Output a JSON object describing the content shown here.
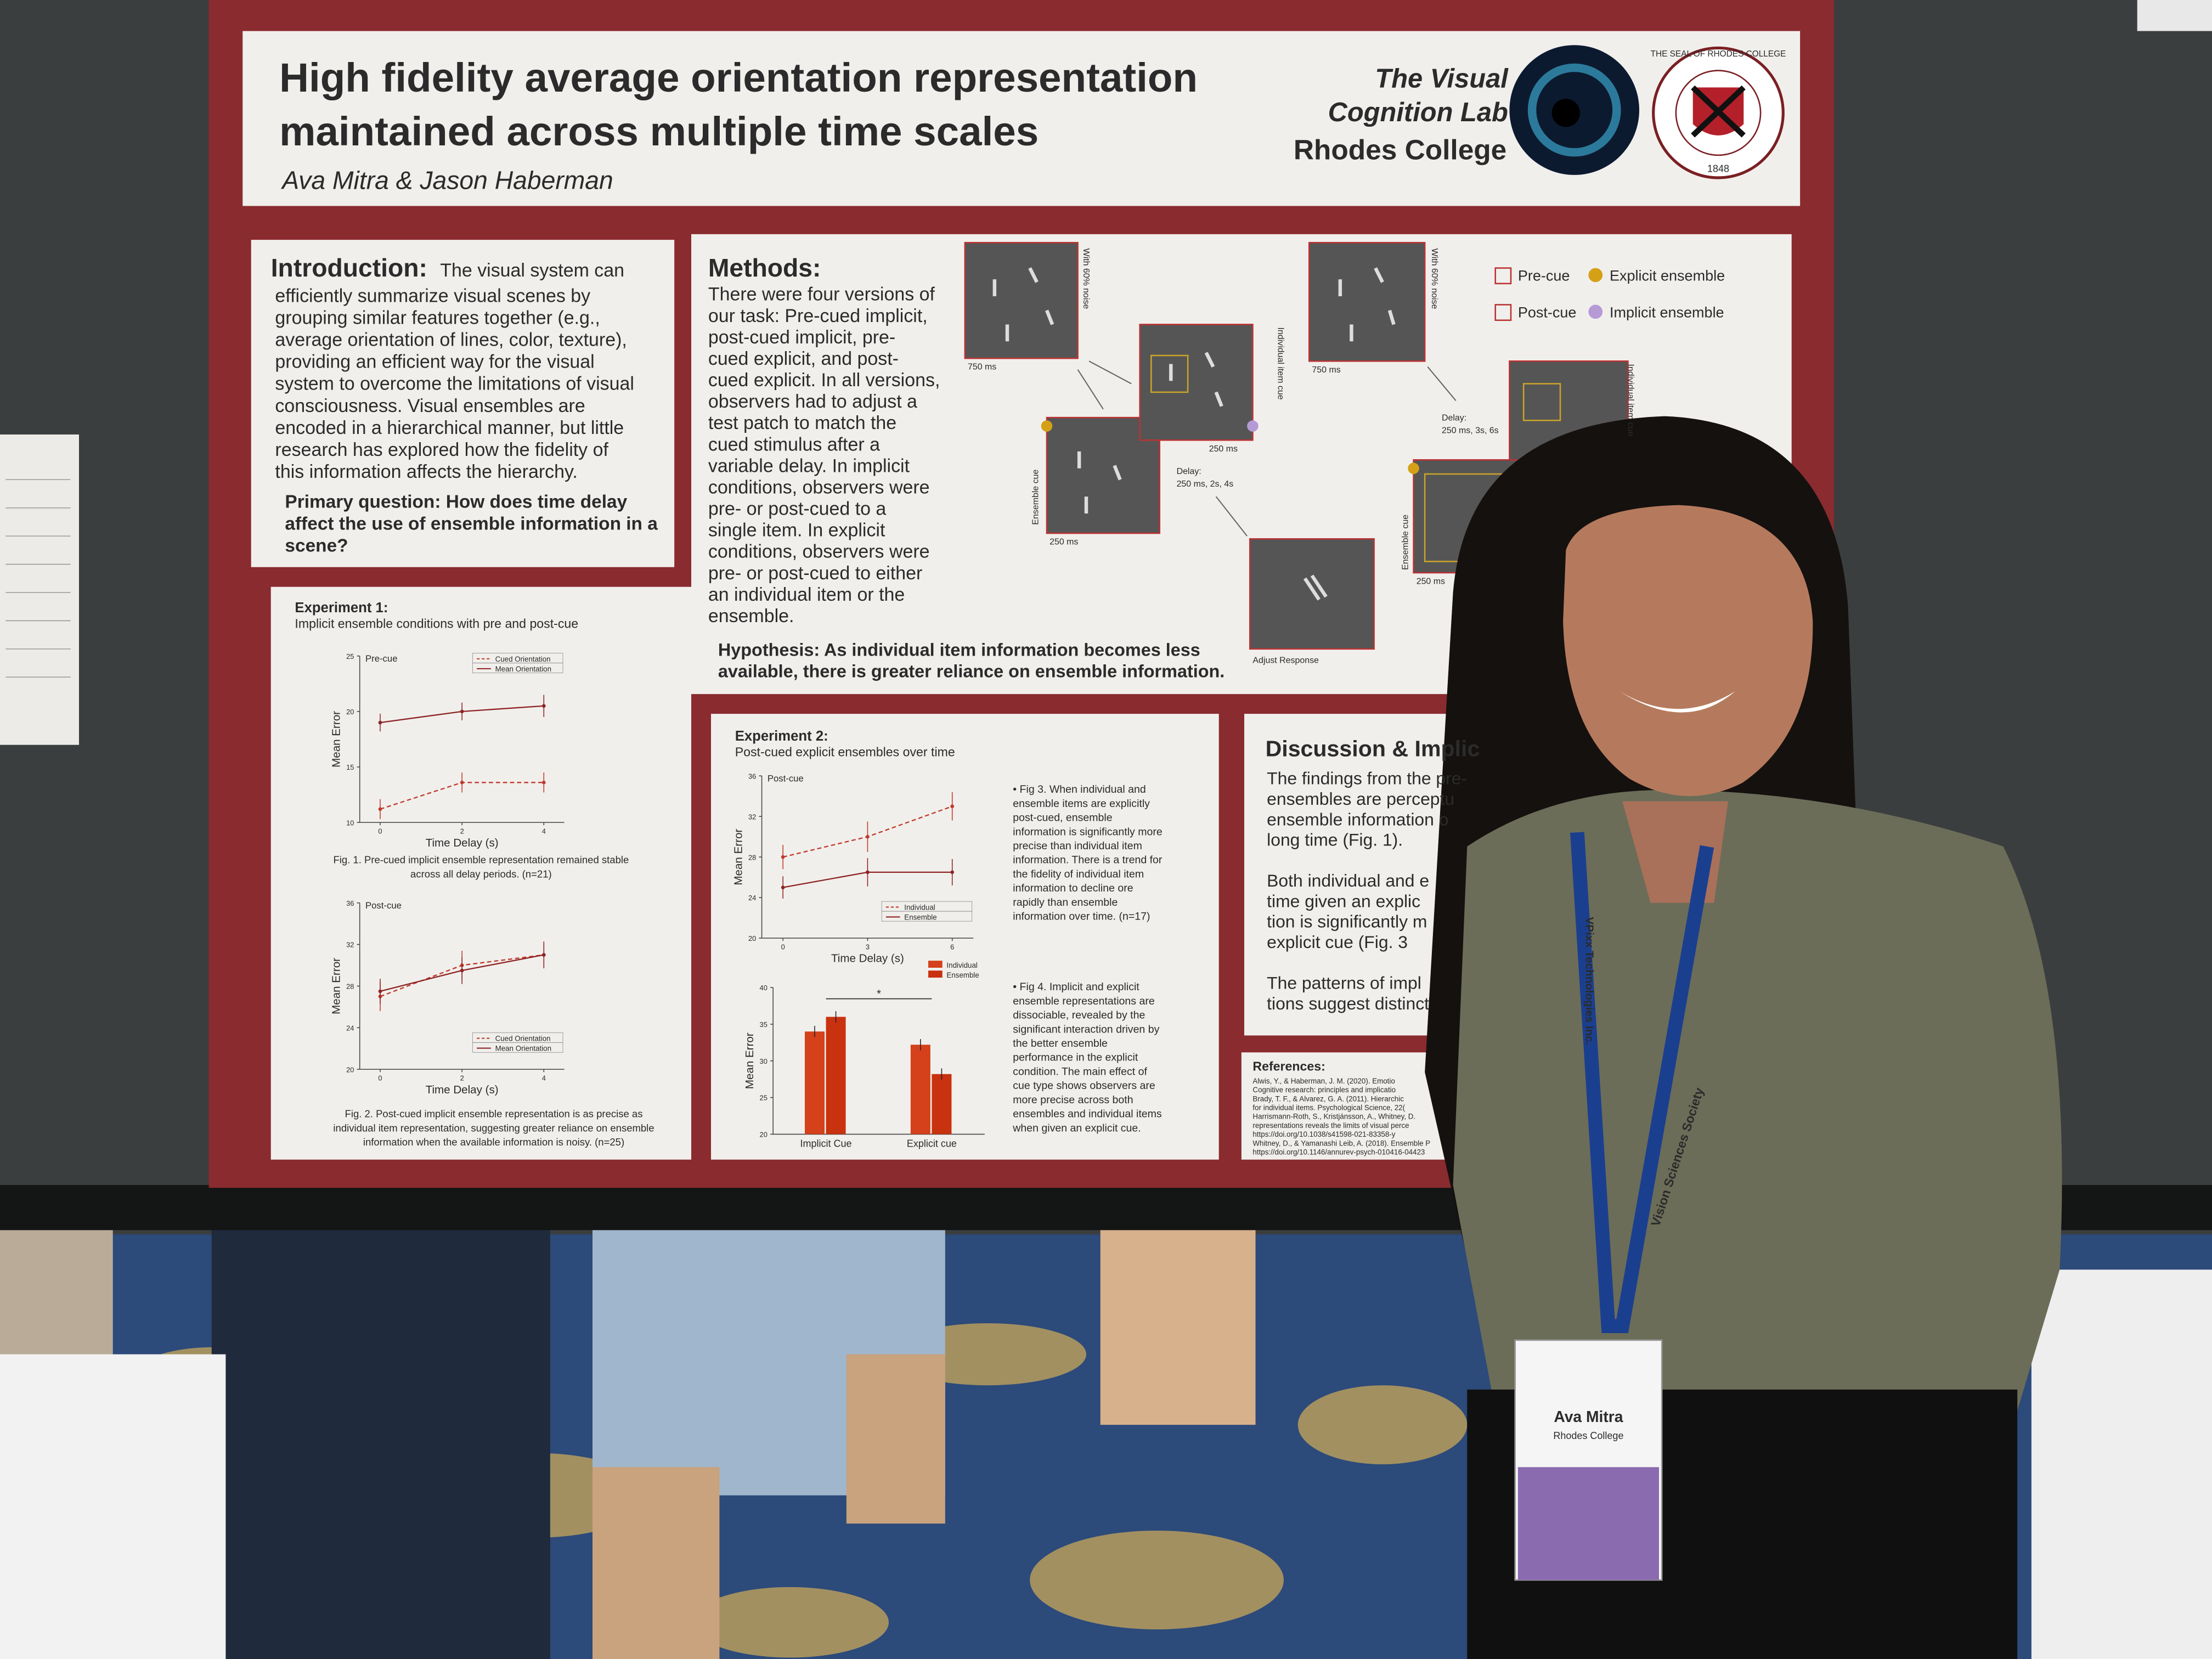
{
  "poster": {
    "title": [
      "High fidelity average orientation representation",
      "maintained across multiple time scales"
    ],
    "authors": "Ava Mitra & Jason Haberman",
    "lab": [
      "The Visual",
      "Cognition Lab"
    ],
    "college": "Rhodes College",
    "seal": [
      "THE SEAL OF RHODES COLLEGE",
      "1848"
    ],
    "introduction": {
      "heading": "Introduction:",
      "first": "The visual system can",
      "lines": [
        "efficiently summarize visual scenes by",
        "grouping similar features together (e.g.,",
        "average orientation of lines, color, texture),",
        "providing an efficient way for the visual",
        "system to overcome the limitations of visual",
        "consciousness. Visual ensembles are",
        "encoded in a hierarchical manner, but little",
        "research has explored how the fidelity of",
        "this information affects the hierarchy."
      ],
      "question": [
        "Primary question: How does time delay",
        "affect the use of ensemble information in a",
        "scene?"
      ]
    },
    "methods": {
      "heading": "Methods:",
      "lines": [
        "There were four versions of",
        "our task: Pre-cued implicit,",
        "post-cued implicit, pre-",
        "cued explicit, and post-",
        "cued explicit. In all versions,",
        "observers had to adjust a",
        "test patch to match the",
        "cued stimulus after a",
        "variable delay. In implicit",
        "conditions, observers were",
        "pre- or post-cued to a",
        "single item. In explicit",
        "conditions, observers were",
        "pre- or post-cued to either",
        "an individual item or the",
        "ensemble."
      ],
      "hypothesis": [
        "Hypothesis: As individual item information becomes less",
        "available, there is greater reliance on ensemble information."
      ],
      "legend": [
        "Pre-cue",
        "Explicit ensemble",
        "Post-cue",
        "Implicit ensemble"
      ],
      "labels": [
        "With 60% noise",
        "750 ms",
        "Individual item cue",
        "250 ms",
        "Ensemble cue",
        "250 ms",
        "Delay:",
        "250 ms, 2s, 4s",
        "Adjust Response",
        "With 60% noise",
        "750 ms",
        "Delay:",
        "250 ms, 3s, 6s",
        "Individual item cue",
        "Ensemble cue",
        "250 ms"
      ]
    },
    "experiment1": {
      "heading": "Experiment 1:",
      "subtitle": "Implicit ensemble conditions with pre and post-cue",
      "fig1_caption": [
        "Fig. 1. Pre-cued implicit ensemble representation remained stable",
        "across all delay periods. (n=21)"
      ],
      "fig2_caption": [
        "Fig. 2. Post-cued implicit ensemble representation is as precise as",
        "individual item representation, suggesting greater reliance on ensemble",
        "information when the available information is noisy. (n=25)"
      ]
    },
    "experiment2": {
      "heading": "Experiment 2:",
      "subtitle": "Post-cued explicit ensembles over time",
      "fig3_text": [
        "• Fig 3. When individual and",
        "ensemble items are explicitly",
        "post-cued, ensemble",
        "information is significantly more",
        "precise than individual item",
        "information. There is a trend for",
        "the fidelity of individual item",
        "information to decline ore",
        "rapidly than ensemble",
        "information over time.  (n=17)"
      ],
      "fig4_text": [
        "• Fig 4. Implicit and explicit",
        "ensemble representations are",
        "dissociable, revealed by the",
        "significant interaction driven by",
        "the better ensemble",
        "performance in the explicit",
        "condition. The main effect of",
        "cue type shows observers are",
        "more precise across both",
        "ensembles and individual items",
        "when given an explicit cue."
      ]
    },
    "discussion": {
      "heading": "Discussion & Implic",
      "lines": [
        "The findings from the pre-",
        "ensembles are perceptu",
        "ensemble information o",
        "long time (Fig. 1).",
        "",
        "Both individual and e",
        "time given an explic",
        "tion is significantly m",
        "explicit cue (Fig. 3",
        "",
        "The patterns of impl",
        "tions suggest distinct"
      ]
    },
    "references": {
      "heading": "References:",
      "lines": [
        "Alwis, Y., & Haberman, J. M. (2020). Emotio",
        "Cognitive research: principles and implicatio",
        "Brady, T. F., & Alvarez, G. A. (2011). Hierarchic",
        "for individual items. Psychological Science, 22(",
        "Harrismann-Roth, S., Kristjánsson, A., Whitney, D.",
        "representations reveals the limits of visual perce",
        "https://doi.org/10.1038/s41598-021-83358-y",
        "Whitney, D., & Yamanashi Leib, A. (2018). Ensemble P",
        "https://doi.org/10.1146/annurev-psych-010416-04423"
      ]
    }
  },
  "figures": [
    {
      "type": "line",
      "title": "Pre-cue",
      "xlabel": "Time Delay (s)",
      "ylabel": "Mean Error",
      "x": [
        0,
        2,
        4
      ],
      "xlim": [
        -0.5,
        4.5
      ],
      "xticks": [
        0,
        2,
        4
      ],
      "ylim": [
        10,
        25
      ],
      "yticks": [
        10,
        15,
        20,
        25
      ],
      "legend": "upper right",
      "series": [
        {
          "name": "Cued Orientation",
          "color": "#c0392b",
          "dash": true,
          "values": [
            11.2,
            13.6,
            13.6
          ],
          "errors": [
            0.9,
            0.9,
            0.9
          ]
        },
        {
          "name": "Mean Orientation",
          "color": "#8e2424",
          "dash": false,
          "values": [
            19,
            20,
            20.5
          ],
          "errors": [
            0.8,
            0.8,
            1
          ]
        }
      ]
    },
    {
      "type": "line",
      "title": "Post-cue",
      "xlabel": "Time Delay (s)",
      "ylabel": "Mean Error",
      "x": [
        0,
        2,
        4
      ],
      "xlim": [
        -0.5,
        4.5
      ],
      "xticks": [
        0,
        2,
        4
      ],
      "ylim": [
        20,
        36
      ],
      "yticks": [
        20,
        24,
        28,
        32,
        36
      ],
      "legend": "lower right",
      "series": [
        {
          "name": "Cued Orientation",
          "color": "#c0392b",
          "dash": true,
          "values": [
            27,
            30,
            31
          ],
          "errors": [
            1.4,
            1.4,
            1.3
          ]
        },
        {
          "name": "Mean Orientation",
          "color": "#8e2424",
          "dash": false,
          "values": [
            27.5,
            29.5,
            31
          ],
          "errors": [
            1.2,
            1.3,
            1.2
          ]
        }
      ]
    },
    {
      "type": "line",
      "title": "Post-cue",
      "xlabel": "Time Delay (s)",
      "ylabel": "Mean Error",
      "x": [
        0,
        3,
        6
      ],
      "xlim": [
        -0.75,
        6.75
      ],
      "xticks": [
        0,
        3,
        6
      ],
      "ylim": [
        20,
        36
      ],
      "yticks": [
        20,
        24,
        28,
        32,
        36
      ],
      "legend": "lower right",
      "series": [
        {
          "name": "Individual",
          "color": "#c0392b",
          "dash": true,
          "values": [
            28,
            30,
            33
          ],
          "errors": [
            1.2,
            1.5,
            1.4
          ]
        },
        {
          "name": "Ensemble",
          "color": "#8e2424",
          "dash": false,
          "values": [
            25,
            26.5,
            26.5
          ],
          "errors": [
            1.1,
            1.4,
            1.3
          ]
        }
      ]
    },
    {
      "type": "bar",
      "ylabel": "Mean Error",
      "categories": [
        "Implicit Cue",
        "Explicit cue"
      ],
      "ylim": [
        20,
        40
      ],
      "yticks": [
        20,
        25,
        30,
        35,
        40
      ],
      "legend": "upper right",
      "annotation": "*",
      "series": [
        {
          "name": "Individual",
          "color": "#d4411a",
          "values": [
            34,
            32.2
          ]
        },
        {
          "name": "Ensemble",
          "color": "#c8320f",
          "values": [
            36,
            28.2
          ]
        }
      ]
    }
  ],
  "badge": {
    "name": "Ava Mitra",
    "affiliation": "Rhodes College"
  },
  "lanyard": [
    "VPixx Technologies Inc.",
    "Vision Sciences Society"
  ]
}
